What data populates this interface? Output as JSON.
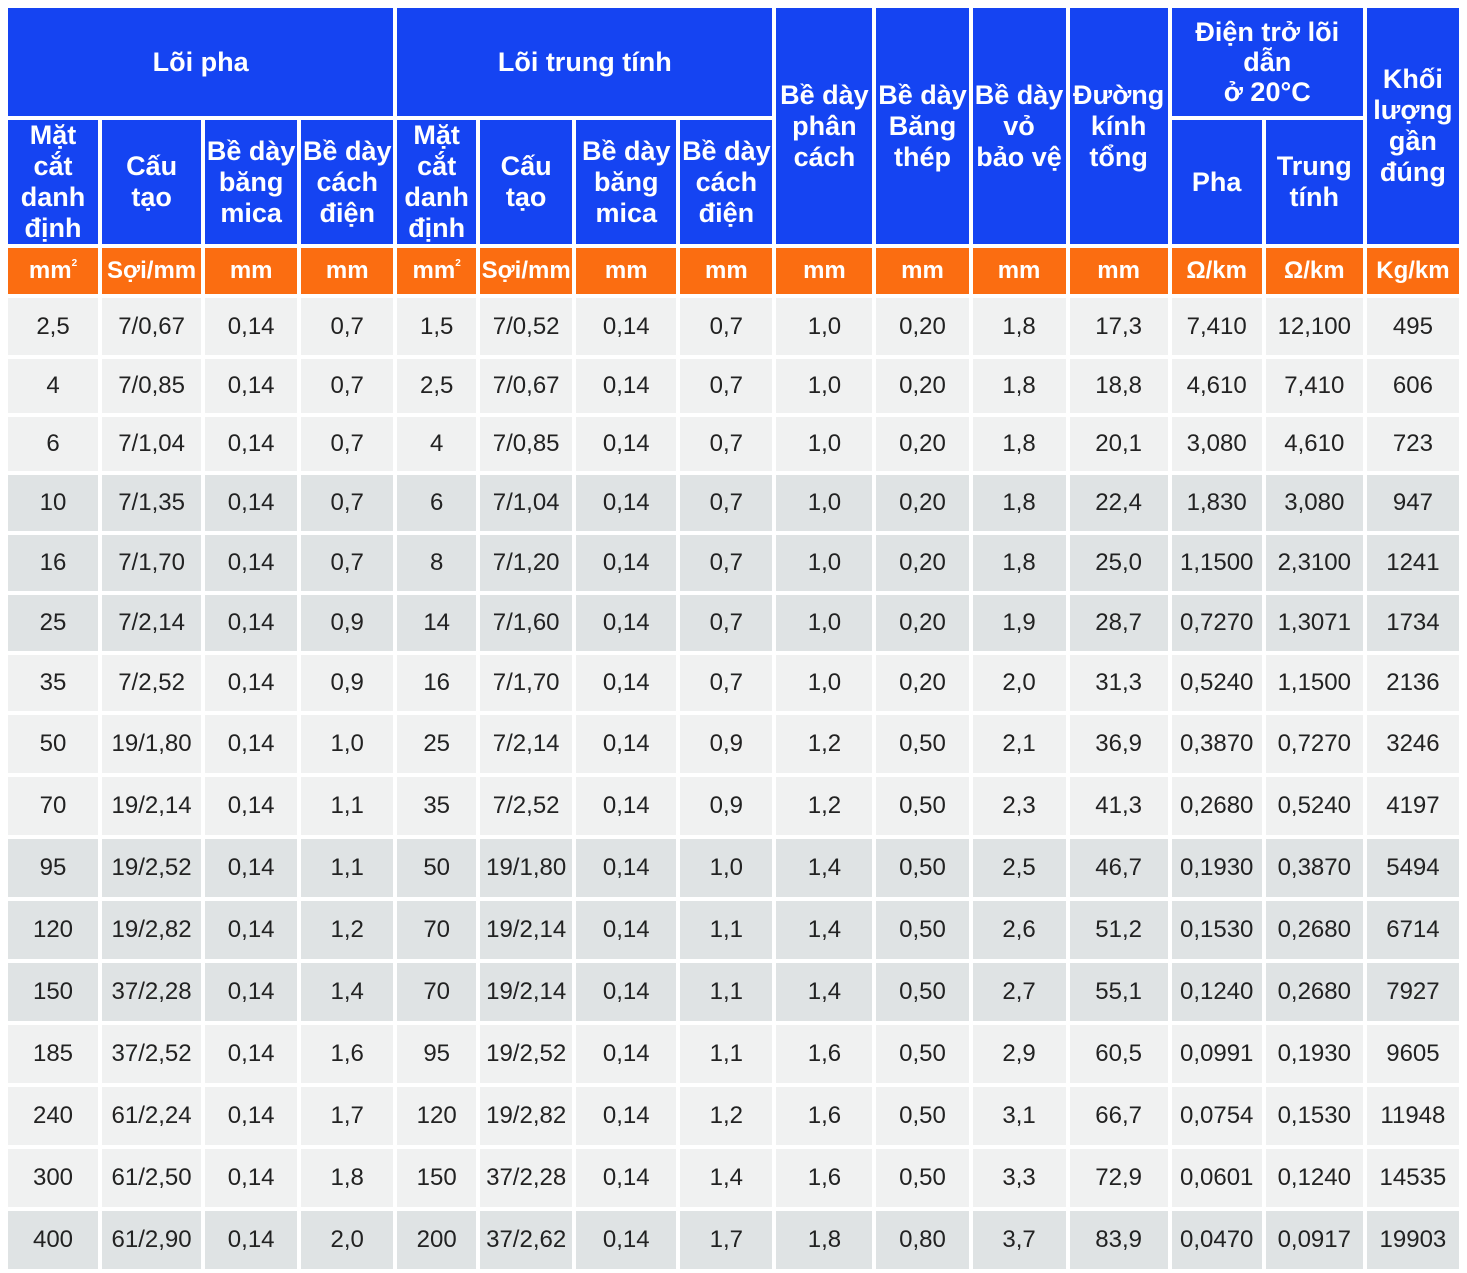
{
  "table": {
    "groups": {
      "phase_core": "Lõi pha",
      "neutral_core": "Lõi trung tính",
      "resistance": "Điện trở lõi\ndẫn\nở 20°C"
    },
    "columns": {
      "phase_cross_section": "Mặt\ncắt\ndanh\nđịnh",
      "phase_structure": "Cấu\ntạo",
      "phase_mica": "Bề dày\nbăng\nmica",
      "phase_insulation": "Bề dày\ncách\nđiện",
      "neutral_cross_section": "Mặt\ncắt\ndanh\nđịnh",
      "neutral_structure": "Cấu\ntạo",
      "neutral_mica": "Bề dày\nbăng\nmica",
      "neutral_insulation": "Bề dày\ncách\nđiện",
      "separator": "Bề dày\nphân\ncách",
      "steel_tape": "Bề dày\nBăng\nthép",
      "sheath": "Bề dày\nvỏ\nbảo vệ",
      "overall_diameter": "Đường\nkính\ntổng",
      "resistance_phase": "Pha",
      "resistance_neutral": "Trung\ntính",
      "weight": "Khối\nlượng\ngần\nđúng"
    },
    "units": {
      "phase_cross_section_base": "mm",
      "phase_cross_section_exp": "2",
      "phase_structure": "Sợi/mm",
      "phase_mica": "mm",
      "phase_insulation": "mm",
      "neutral_cross_section_base": "mm",
      "neutral_cross_section_exp": "2",
      "neutral_structure": "Sợi/mm",
      "neutral_mica": "mm",
      "neutral_insulation": "mm",
      "separator": "mm",
      "steel_tape": "mm",
      "sheath": "mm",
      "overall_diameter": "mm",
      "resistance_phase": "Ω/km",
      "resistance_neutral": "Ω/km",
      "weight": "Kg/km"
    },
    "rows": [
      [
        "2,5",
        "7/0,67",
        "0,14",
        "0,7",
        "1,5",
        "7/0,52",
        "0,14",
        "0,7",
        "1,0",
        "0,20",
        "1,8",
        "17,3",
        "7,410",
        "12,100",
        "495"
      ],
      [
        "4",
        "7/0,85",
        "0,14",
        "0,7",
        "2,5",
        "7/0,67",
        "0,14",
        "0,7",
        "1,0",
        "0,20",
        "1,8",
        "18,8",
        "4,610",
        "7,410",
        "606"
      ],
      [
        "6",
        "7/1,04",
        "0,14",
        "0,7",
        "4",
        "7/0,85",
        "0,14",
        "0,7",
        "1,0",
        "0,20",
        "1,8",
        "20,1",
        "3,080",
        "4,610",
        "723"
      ],
      [
        "10",
        "7/1,35",
        "0,14",
        "0,7",
        "6",
        "7/1,04",
        "0,14",
        "0,7",
        "1,0",
        "0,20",
        "1,8",
        "22,4",
        "1,830",
        "3,080",
        "947"
      ],
      [
        "16",
        "7/1,70",
        "0,14",
        "0,7",
        "8",
        "7/1,20",
        "0,14",
        "0,7",
        "1,0",
        "0,20",
        "1,8",
        "25,0",
        "1,1500",
        "2,3100",
        "1241"
      ],
      [
        "25",
        "7/2,14",
        "0,14",
        "0,9",
        "14",
        "7/1,60",
        "0,14",
        "0,7",
        "1,0",
        "0,20",
        "1,9",
        "28,7",
        "0,7270",
        "1,3071",
        "1734"
      ],
      [
        "35",
        "7/2,52",
        "0,14",
        "0,9",
        "16",
        "7/1,70",
        "0,14",
        "0,7",
        "1,0",
        "0,20",
        "2,0",
        "31,3",
        "0,5240",
        "1,1500",
        "2136"
      ],
      [
        "50",
        "19/1,80",
        "0,14",
        "1,0",
        "25",
        "7/2,14",
        "0,14",
        "0,9",
        "1,2",
        "0,50",
        "2,1",
        "36,9",
        "0,3870",
        "0,7270",
        "3246"
      ],
      [
        "70",
        "19/2,14",
        "0,14",
        "1,1",
        "35",
        "7/2,52",
        "0,14",
        "0,9",
        "1,2",
        "0,50",
        "2,3",
        "41,3",
        "0,2680",
        "0,5240",
        "4197"
      ],
      [
        "95",
        "19/2,52",
        "0,14",
        "1,1",
        "50",
        "19/1,80",
        "0,14",
        "1,0",
        "1,4",
        "0,50",
        "2,5",
        "46,7",
        "0,1930",
        "0,3870",
        "5494"
      ],
      [
        "120",
        "19/2,82",
        "0,14",
        "1,2",
        "70",
        "19/2,14",
        "0,14",
        "1,1",
        "1,4",
        "0,50",
        "2,6",
        "51,2",
        "0,1530",
        "0,2680",
        "6714"
      ],
      [
        "150",
        "37/2,28",
        "0,14",
        "1,4",
        "70",
        "19/2,14",
        "0,14",
        "1,1",
        "1,4",
        "0,50",
        "2,7",
        "55,1",
        "0,1240",
        "0,2680",
        "7927"
      ],
      [
        "185",
        "37/2,52",
        "0,14",
        "1,6",
        "95",
        "19/2,52",
        "0,14",
        "1,1",
        "1,6",
        "0,50",
        "2,9",
        "60,5",
        "0,0991",
        "0,1930",
        "9605"
      ],
      [
        "240",
        "61/2,24",
        "0,14",
        "1,7",
        "120",
        "19/2,82",
        "0,14",
        "1,2",
        "1,6",
        "0,50",
        "3,1",
        "66,7",
        "0,0754",
        "0,1530",
        "11948"
      ],
      [
        "300",
        "61/2,50",
        "0,14",
        "1,8",
        "150",
        "37/2,28",
        "0,14",
        "1,4",
        "1,6",
        "0,50",
        "3,3",
        "72,9",
        "0,0601",
        "0,1240",
        "14535"
      ],
      [
        "400",
        "61/2,90",
        "0,14",
        "2,0",
        "200",
        "37/2,62",
        "0,14",
        "1,7",
        "1,8",
        "0,80",
        "3,7",
        "83,9",
        "0,0470",
        "0,0917",
        "19903"
      ]
    ],
    "colors": {
      "header_blue": "#1544f2",
      "unit_orange": "#fb6d11",
      "row_light": "#f0f1f1",
      "row_dark": "#dfe3e4"
    }
  }
}
